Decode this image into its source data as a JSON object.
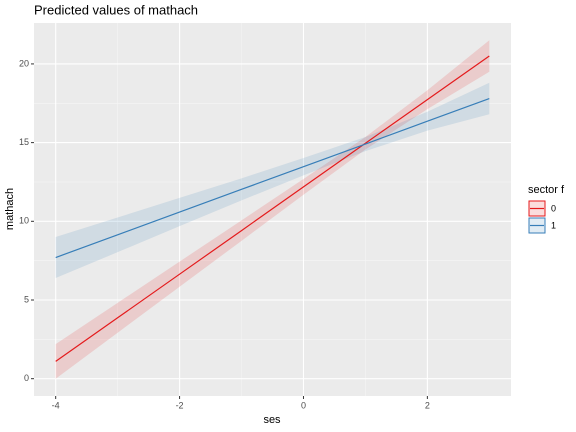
{
  "chart_data": {
    "type": "line-ribbon",
    "title": "Predicted values of mathach",
    "x_label": "ses",
    "y_label": "mathach",
    "legend_title": "sector f",
    "x": [
      -4,
      -3,
      -2,
      -1,
      0,
      1,
      2,
      3
    ],
    "series": [
      {
        "name": "0",
        "color": "#e41a1c",
        "values": [
          1.1,
          3.87,
          6.64,
          9.41,
          12.19,
          14.96,
          17.73,
          20.5
        ],
        "lower": [
          0.0,
          2.92,
          5.84,
          8.76,
          11.69,
          14.56,
          17.13,
          19.5
        ],
        "upper": [
          2.2,
          4.82,
          7.44,
          10.06,
          12.69,
          15.36,
          18.33,
          21.5
        ]
      },
      {
        "name": "1",
        "color": "#377eb8",
        "values": [
          7.7,
          9.14,
          10.59,
          12.03,
          13.47,
          14.91,
          16.36,
          17.8
        ],
        "lower": [
          6.4,
          8.04,
          9.69,
          11.33,
          12.92,
          14.46,
          15.76,
          16.8
        ],
        "upper": [
          9.0,
          10.24,
          11.49,
          12.73,
          14.02,
          15.36,
          16.96,
          18.8
        ]
      }
    ],
    "xlim": [
      -4.35,
      3.35
    ],
    "xticks": [
      -4,
      -2,
      0,
      2
    ],
    "ylim": [
      -1.1,
      22.6
    ],
    "yticks": [
      0,
      5,
      10,
      15,
      20
    ],
    "grid": true,
    "legend_position": "right"
  }
}
